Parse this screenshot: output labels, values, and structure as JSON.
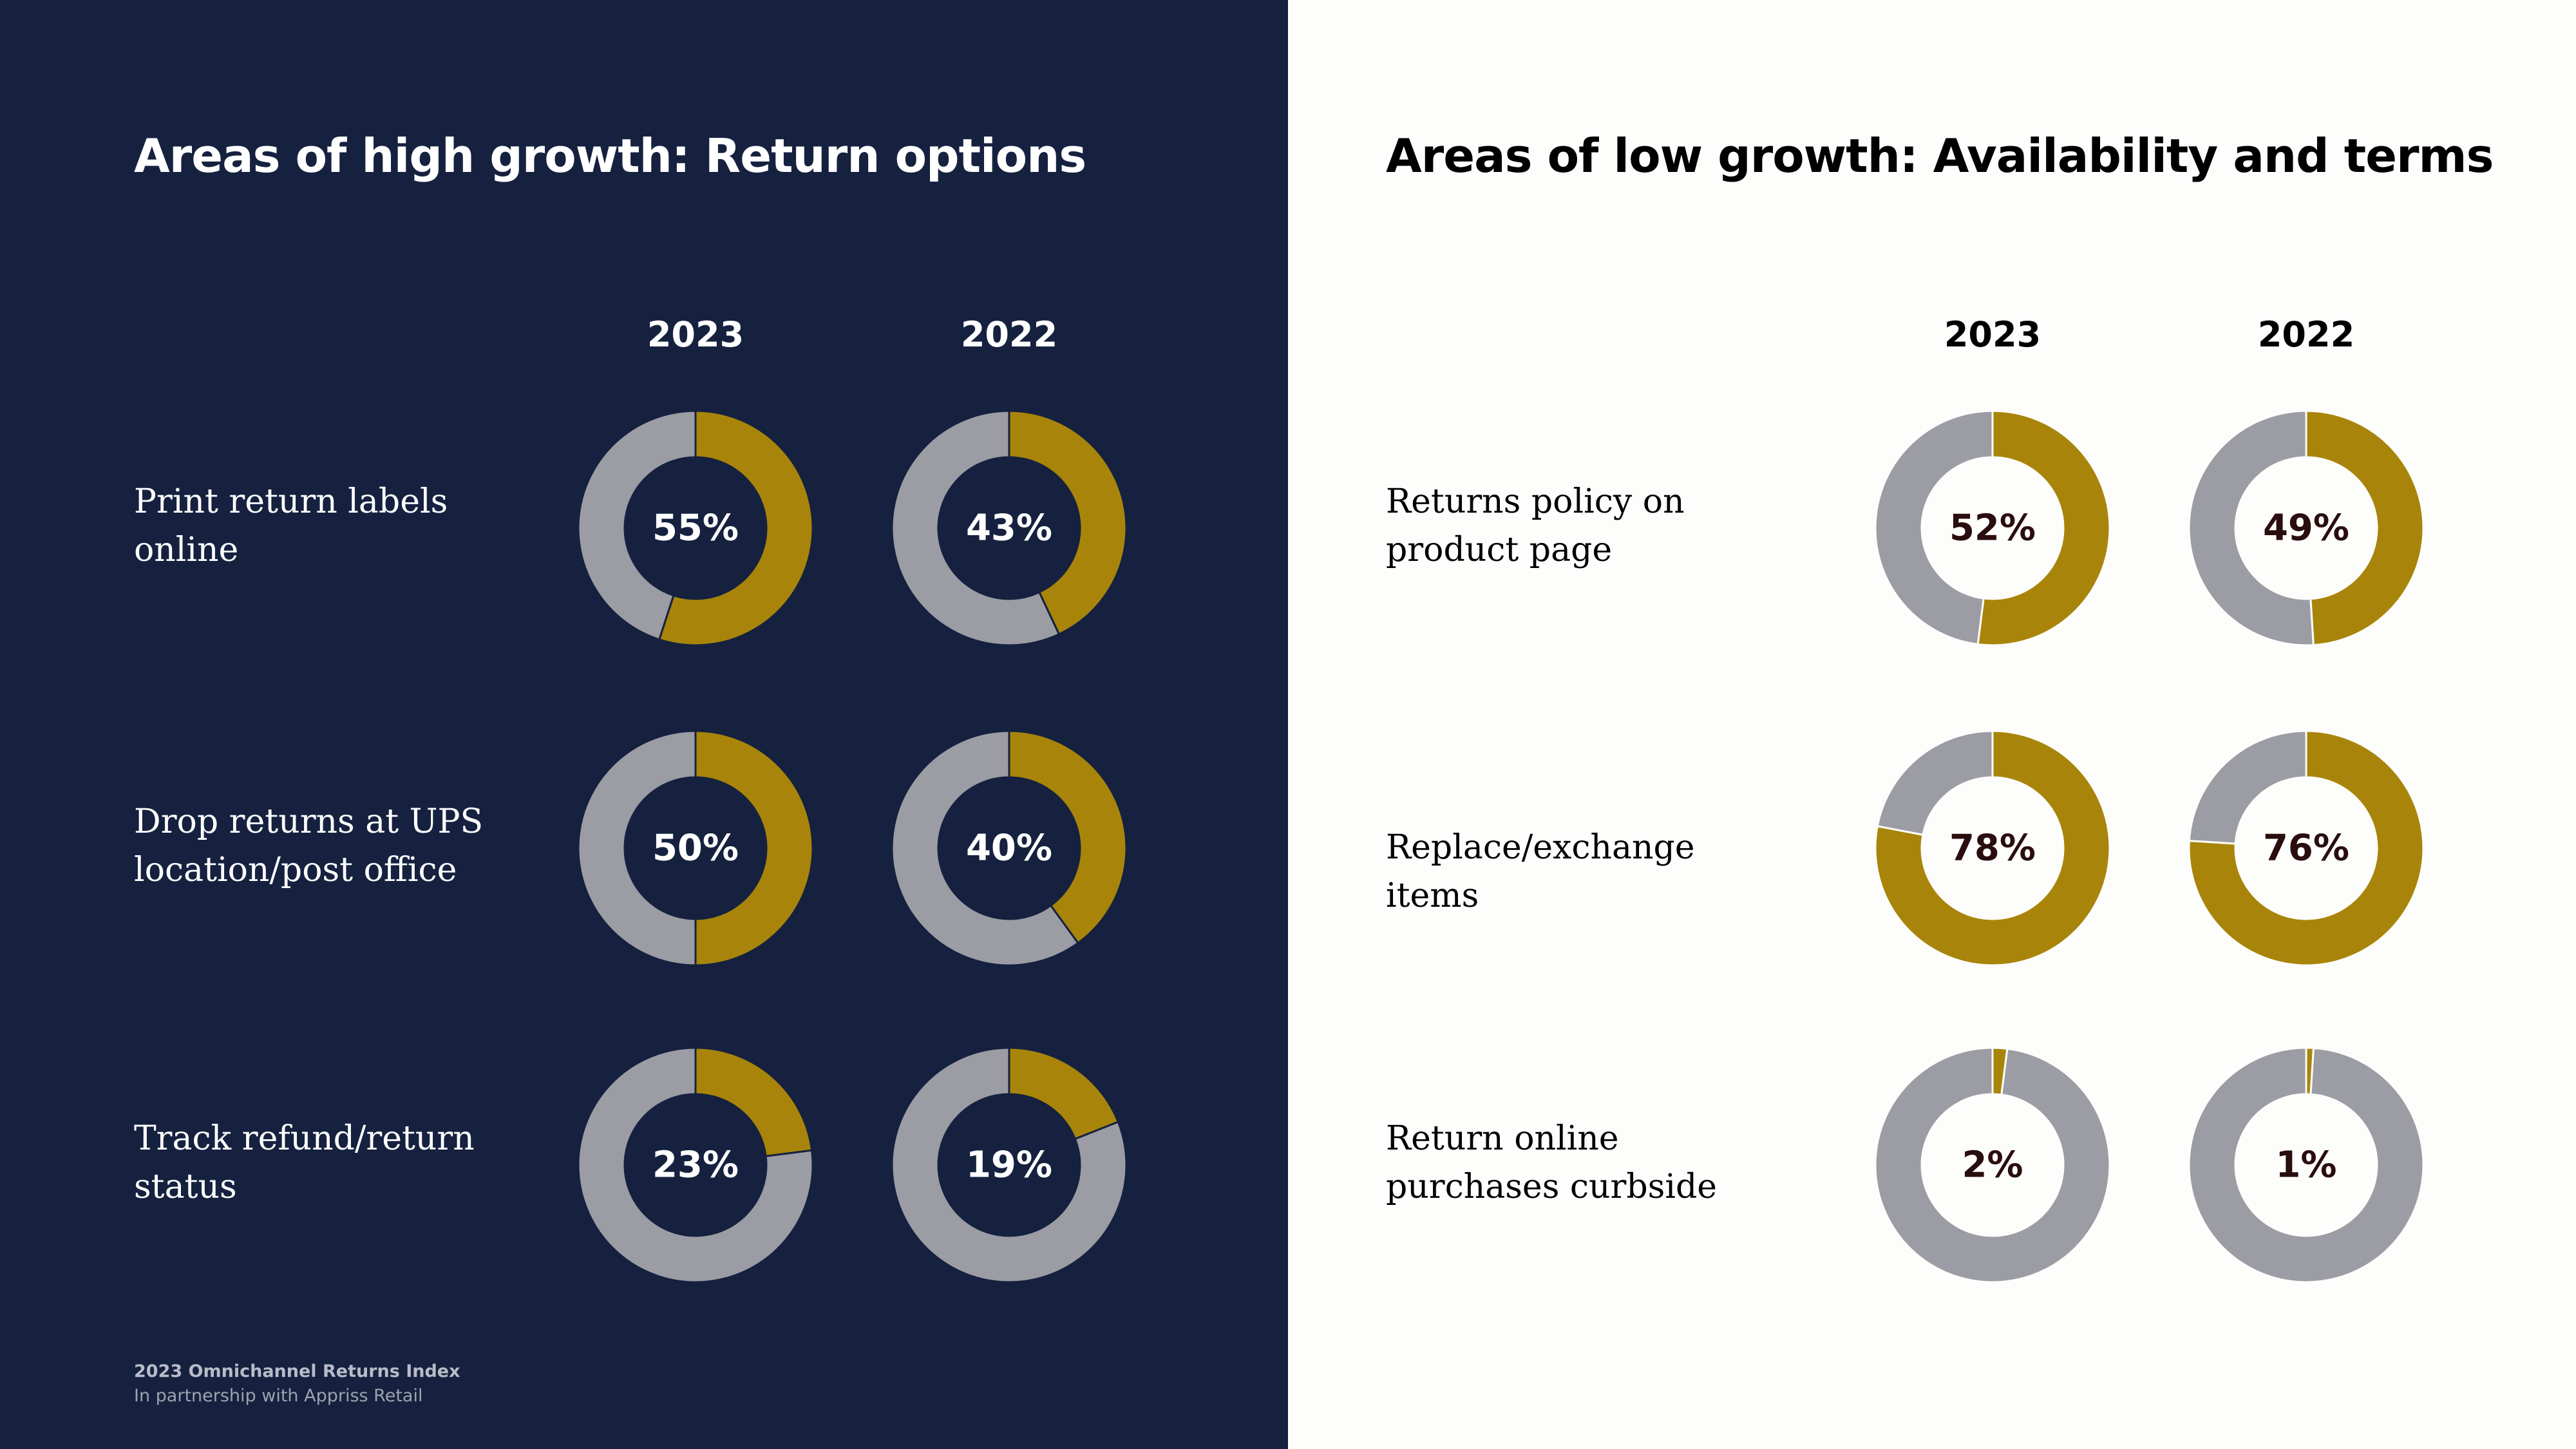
{
  "colors": {
    "left_background": "#15213f",
    "right_background": "#fdfdfc",
    "highlight": "#a8850a",
    "remainder": "#9c9ca4"
  },
  "left": {
    "title": "Areas of high growth: Return options",
    "years": [
      "2023",
      "2022"
    ],
    "rows": [
      {
        "label": "Print return labels online",
        "pct_2023": "55%",
        "pct_2022": "43%"
      },
      {
        "label": "Drop returns at UPS location/post office",
        "pct_2023": "50%",
        "pct_2022": "40%"
      },
      {
        "label": "Track refund/return status",
        "pct_2023": "23%",
        "pct_2022": "19%"
      }
    ]
  },
  "right": {
    "title": "Areas of low growth: Availability and terms",
    "years": [
      "2023",
      "2022"
    ],
    "rows": [
      {
        "label": "Returns policy on product page",
        "pct_2023": "52%",
        "pct_2022": "49%"
      },
      {
        "label": "Replace/exchange items",
        "pct_2023": "78%",
        "pct_2022": "76%"
      },
      {
        "label": "Return online purchases curbside",
        "pct_2023": "2%",
        "pct_2022": "1%"
      }
    ]
  },
  "footer": {
    "title": "2023 Omnichannel Returns Index",
    "subtitle": "In partnership with Appriss Retail"
  },
  "chart_data": [
    {
      "type": "pie",
      "variant": "donut",
      "title": "Areas of high growth: Return options",
      "years": [
        "2023",
        "2022"
      ],
      "categories": [
        "Print return labels online",
        "Drop returns at UPS location/post office",
        "Track refund/return status"
      ],
      "series": [
        {
          "name": "2023",
          "values": [
            55,
            50,
            23
          ]
        },
        {
          "name": "2022",
          "values": [
            43,
            40,
            19
          ]
        }
      ],
      "unit": "%"
    },
    {
      "type": "pie",
      "variant": "donut",
      "title": "Areas of low growth: Availability and terms",
      "years": [
        "2023",
        "2022"
      ],
      "categories": [
        "Returns policy on product page",
        "Replace/exchange items",
        "Return online purchases curbside"
      ],
      "series": [
        {
          "name": "2023",
          "values": [
            52,
            78,
            2
          ]
        },
        {
          "name": "2022",
          "values": [
            49,
            76,
            1
          ]
        }
      ],
      "unit": "%"
    }
  ]
}
